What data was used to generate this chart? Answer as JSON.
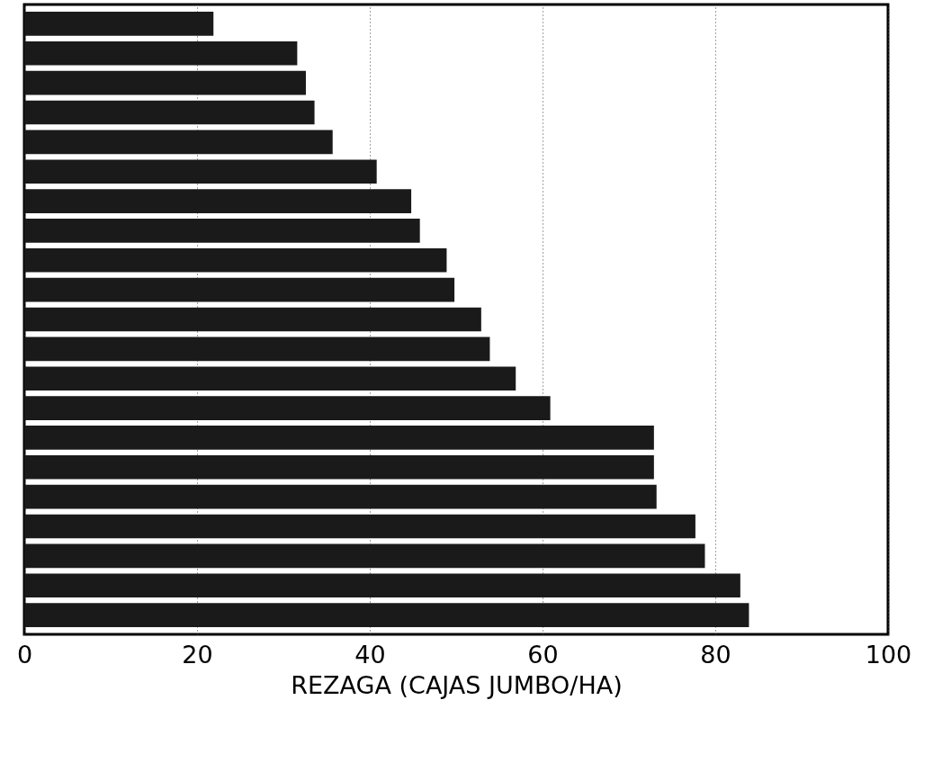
{
  "chart_data": {
    "type": "bar",
    "orientation": "horizontal",
    "xlabel": "REZAGA (CAJAS JUMBO/HA)",
    "categories": [
      null,
      null,
      null,
      null,
      null,
      null,
      null,
      null,
      null,
      null,
      null,
      null,
      null,
      null,
      null,
      null,
      null,
      null,
      null,
      null,
      null
    ],
    "values": [
      21.9,
      31.6,
      32.6,
      33.6,
      35.7,
      40.8,
      44.8,
      45.8,
      48.9,
      49.8,
      52.9,
      53.9,
      56.9,
      60.9,
      72.9,
      72.9,
      73.2,
      77.7,
      78.8,
      82.9,
      83.9
    ],
    "color": "#1a1a1a",
    "xlim": [
      0,
      100
    ],
    "xticks": [
      0,
      20,
      40,
      60,
      80,
      100
    ],
    "grid": "x",
    "line_style": "dotted",
    "tick_labels": "x"
  }
}
